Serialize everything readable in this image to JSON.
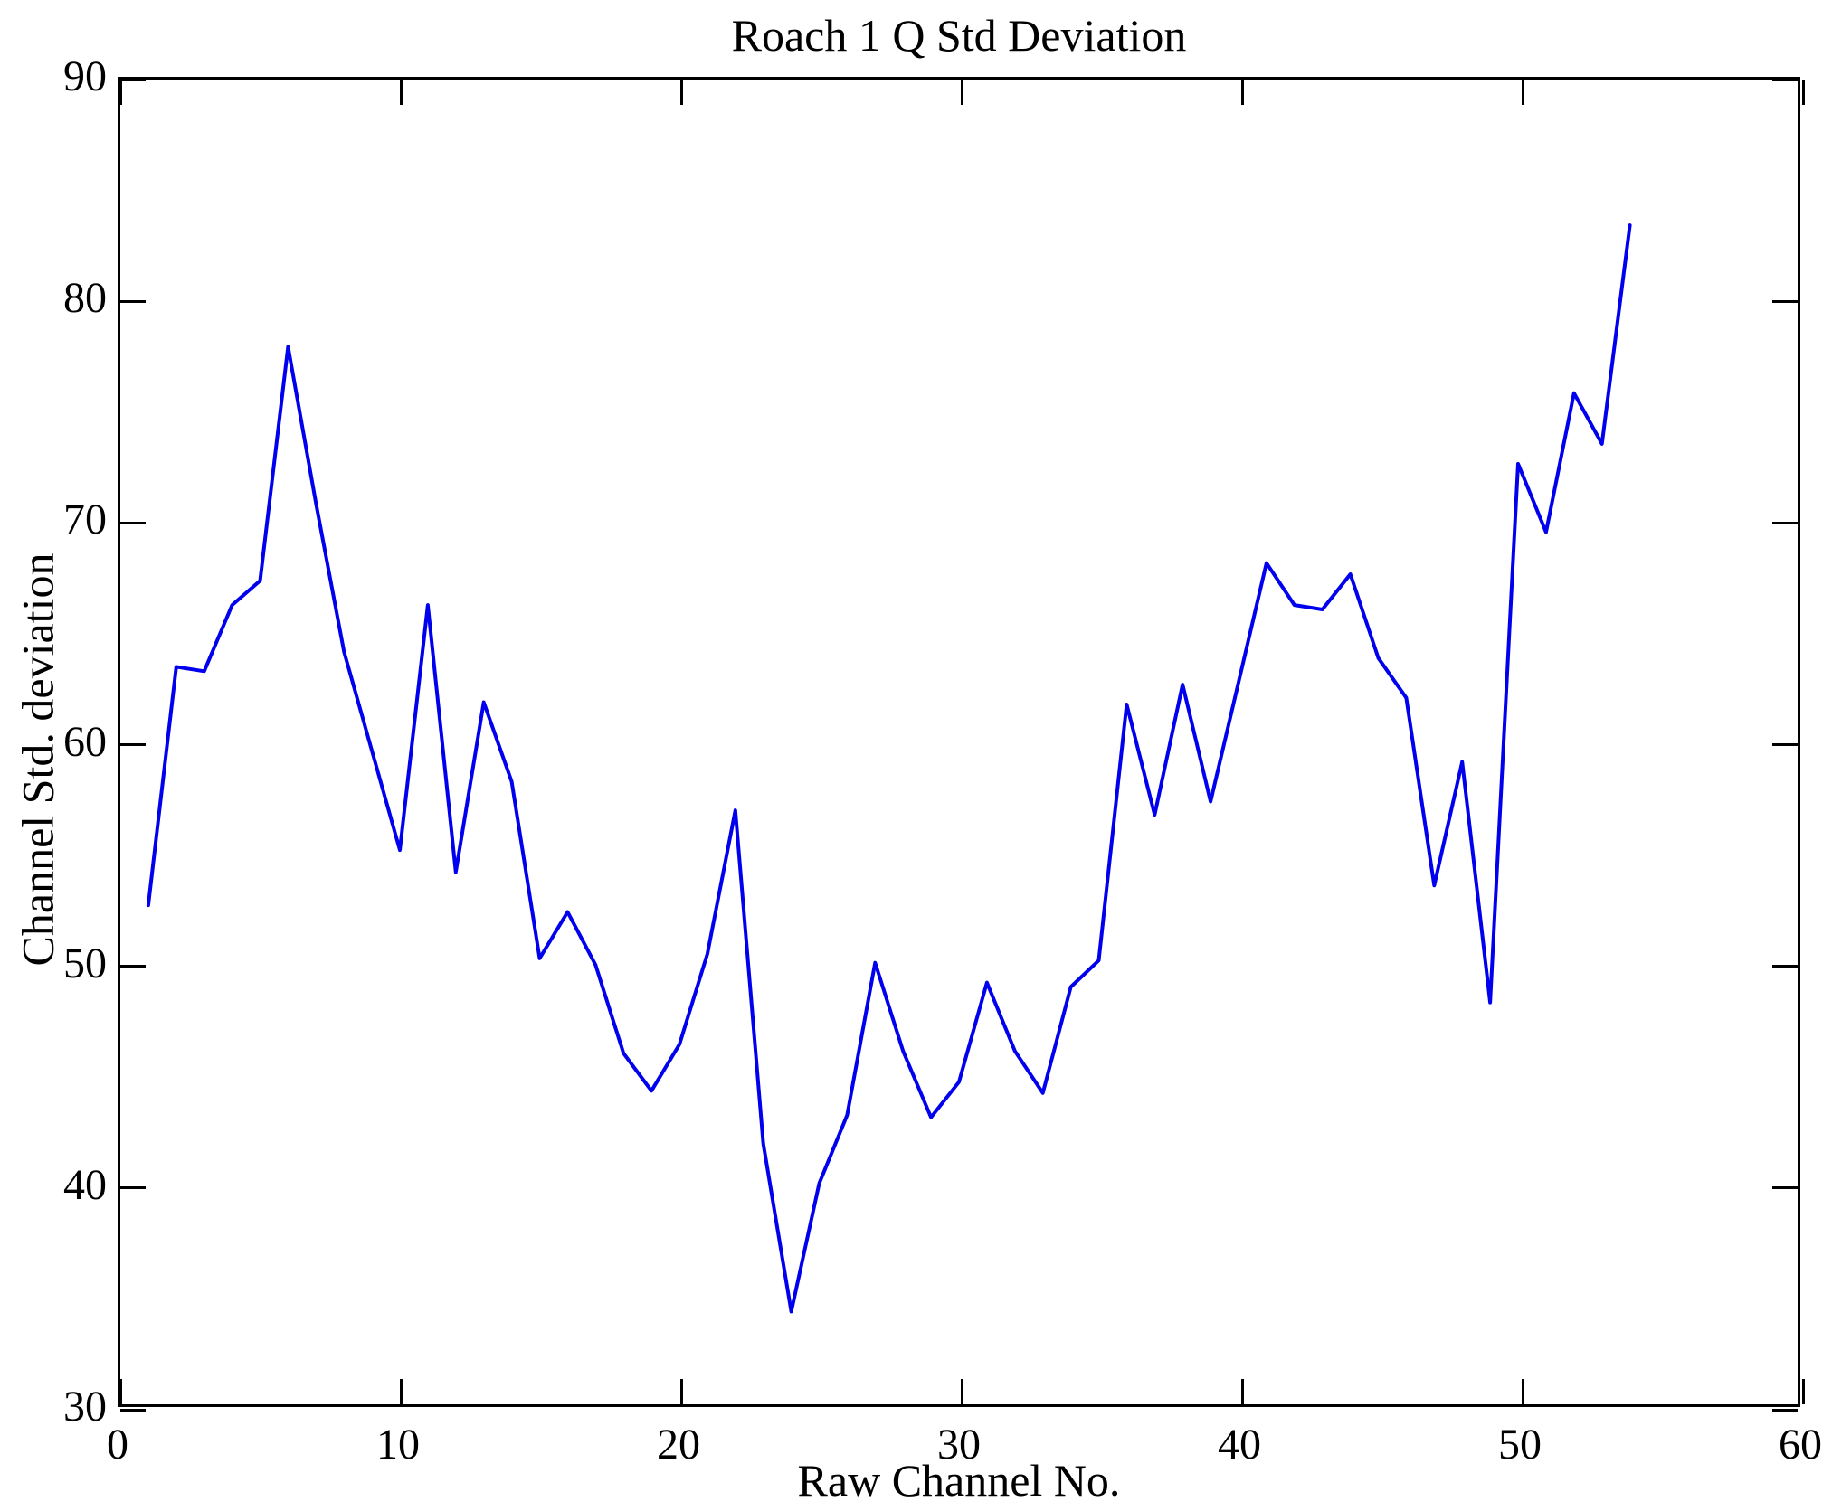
{
  "chart_data": {
    "type": "line",
    "title": "Roach 1 Q Std Deviation",
    "xlabel": "Raw Channel No.",
    "ylabel": "Channel Std. deviation",
    "xlim": [
      0,
      60
    ],
    "ylim": [
      30,
      90
    ],
    "xticks": [
      0,
      10,
      20,
      30,
      40,
      50,
      60
    ],
    "yticks": [
      30,
      40,
      50,
      60,
      70,
      80,
      90
    ],
    "grid": false,
    "legend": "none",
    "line_color": "#0000EE",
    "axis_color": "#000000",
    "x": [
      1,
      2,
      3,
      4,
      5,
      6,
      7,
      8,
      9,
      10,
      11,
      12,
      13,
      14,
      15,
      16,
      17,
      18,
      19,
      20,
      21,
      22,
      23,
      24,
      25,
      26,
      27,
      28,
      29,
      30,
      31,
      32,
      33,
      34,
      35,
      36,
      37,
      38,
      39,
      40,
      41,
      42,
      43,
      44,
      45,
      46,
      47,
      48,
      49,
      50,
      51,
      52,
      53,
      54
    ],
    "y": [
      52.6,
      63.4,
      63.2,
      66.2,
      67.3,
      77.9,
      70.8,
      64.1,
      59.6,
      55.1,
      66.2,
      54.1,
      61.8,
      58.2,
      50.2,
      52.3,
      49.9,
      45.9,
      44.2,
      46.3,
      50.4,
      56.9,
      41.8,
      34.2,
      40.0,
      43.1,
      50.0,
      46.0,
      43.0,
      44.6,
      49.1,
      46.0,
      44.1,
      48.9,
      50.1,
      61.7,
      56.7,
      62.6,
      57.3,
      62.7,
      68.1,
      66.2,
      66.0,
      67.6,
      63.8,
      62.0,
      53.5,
      59.1,
      48.2,
      72.6,
      69.5,
      75.8,
      73.5,
      83.4
    ]
  }
}
